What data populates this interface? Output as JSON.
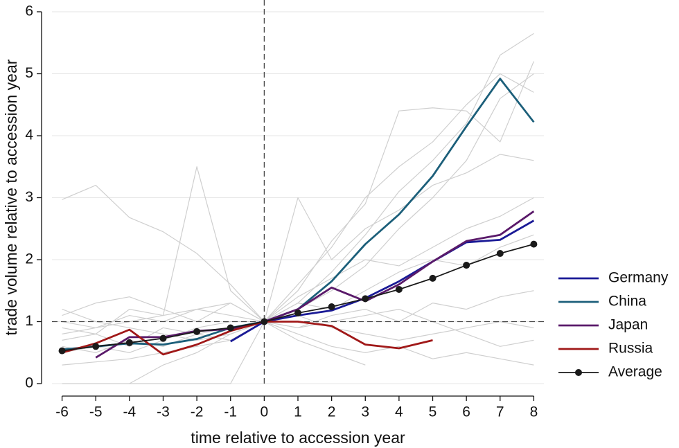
{
  "chart_data": {
    "type": "line",
    "xlabel": "time relative to accession year",
    "ylabel": "trade volume relative to accession year",
    "x": [
      -6,
      -5,
      -4,
      -3,
      -2,
      -1,
      0,
      1,
      2,
      3,
      4,
      5,
      6,
      7,
      8
    ],
    "xlim": [
      -6.3,
      8.3
    ],
    "ylim": [
      0,
      6
    ],
    "xticks": [
      -6,
      -5,
      -4,
      -3,
      -2,
      -1,
      0,
      1,
      2,
      3,
      4,
      5,
      6,
      7,
      8
    ],
    "yticks": [
      0,
      1,
      2,
      3,
      4,
      5,
      6
    ],
    "grid": true,
    "reference_lines": {
      "x": 0,
      "y": 1
    },
    "legend": "right",
    "background_lines": {
      "color": "#cfcfcf",
      "values": [
        [
          2.97,
          3.2,
          2.68,
          2.45,
          2.1,
          1.6,
          1,
          1.3,
          1.8,
          2.4,
          3.1,
          3.6,
          4.2,
          5.3,
          5.65
        ],
        [
          0.9,
          0.8,
          1.2,
          1.1,
          3.5,
          1.5,
          1,
          1.5,
          2.3,
          2.9,
          4.4,
          4.45,
          4.4,
          3.9,
          5.2
        ],
        [
          0,
          0,
          0,
          0,
          0,
          0,
          1,
          1.2,
          1.5,
          1.9,
          2.5,
          3.0,
          3.6,
          4.6,
          5.0
        ],
        [
          1.2,
          1.0,
          0.9,
          0.8,
          0.7,
          0.8,
          1,
          0.8,
          0.6,
          0.5,
          0.6,
          0.4,
          0.5,
          0.4,
          0.3
        ],
        [
          0.3,
          0.35,
          0.4,
          0.5,
          0.6,
          0.7,
          1,
          0.9,
          1.1,
          1.2,
          1.0,
          1.3,
          1.2,
          1.4,
          1.5
        ],
        [
          1.1,
          1.3,
          1.4,
          1.2,
          1.0,
          1.3,
          1,
          3.0,
          2.0,
          2.5,
          2.8,
          3.2,
          3.4,
          3.7,
          3.6
        ],
        [
          0.7,
          0.8,
          0.6,
          0.9,
          0.8,
          0.9,
          1,
          1.1,
          0.9,
          0.8,
          0.7,
          0.8,
          0.9,
          1.0,
          0.9
        ],
        [
          0.6,
          0.5,
          0.7,
          0.6,
          0.8,
          0.7,
          1,
          1.4,
          1.7,
          2.0,
          1.9,
          2.2,
          2.5,
          2.7,
          3.0
        ],
        [
          0.8,
          0.9,
          1.0,
          1.1,
          1.2,
          1.3,
          1,
          0.7,
          0.5,
          0.3,
          null,
          null,
          null,
          null,
          null
        ],
        [
          0.5,
          0.6,
          0.5,
          0.7,
          0.9,
          1.0,
          1,
          1.6,
          2.2,
          3.0,
          3.5,
          3.9,
          4.5,
          5.0,
          4.7
        ],
        [
          null,
          null,
          0,
          0.3,
          0.5,
          0.8,
          1,
          1.3,
          1.2,
          1.5,
          1.8,
          2.0,
          1.9,
          2.2,
          2.4
        ],
        [
          1.0,
          0.9,
          1.1,
          1.0,
          1.2,
          1.1,
          1,
          0.9,
          1.0,
          1.1,
          1.2,
          1.0,
          0.8,
          0.6,
          0.7
        ]
      ]
    },
    "series": [
      {
        "name": "Germany",
        "color": "#1a1a96",
        "values": [
          null,
          null,
          null,
          null,
          null,
          0.68,
          1,
          1.1,
          1.18,
          1.38,
          1.65,
          1.97,
          2.28,
          2.32,
          2.63
        ]
      },
      {
        "name": "China",
        "color": "#1c5f7a",
        "values": [
          0.55,
          0.6,
          0.65,
          0.63,
          0.72,
          0.9,
          1,
          1.2,
          1.65,
          2.25,
          2.73,
          3.35,
          4.15,
          4.92,
          4.22
        ]
      },
      {
        "name": "Japan",
        "color": "#5a1a6a",
        "values": [
          null,
          0.42,
          0.75,
          0.75,
          0.85,
          0.88,
          1,
          1.2,
          1.55,
          1.33,
          1.6,
          1.97,
          2.3,
          2.4,
          2.78
        ]
      },
      {
        "name": "Russia",
        "color": "#a01818",
        "values": [
          0.5,
          0.65,
          0.87,
          0.47,
          0.63,
          0.85,
          1,
          1.0,
          0.93,
          0.63,
          0.57,
          0.7,
          null,
          null,
          null
        ]
      },
      {
        "name": "Average",
        "color": "#1a1a1a",
        "markers": true,
        "values": [
          0.53,
          0.6,
          0.66,
          0.73,
          0.84,
          0.9,
          1,
          1.14,
          1.24,
          1.37,
          1.52,
          1.7,
          1.91,
          2.1,
          2.25
        ]
      }
    ]
  }
}
